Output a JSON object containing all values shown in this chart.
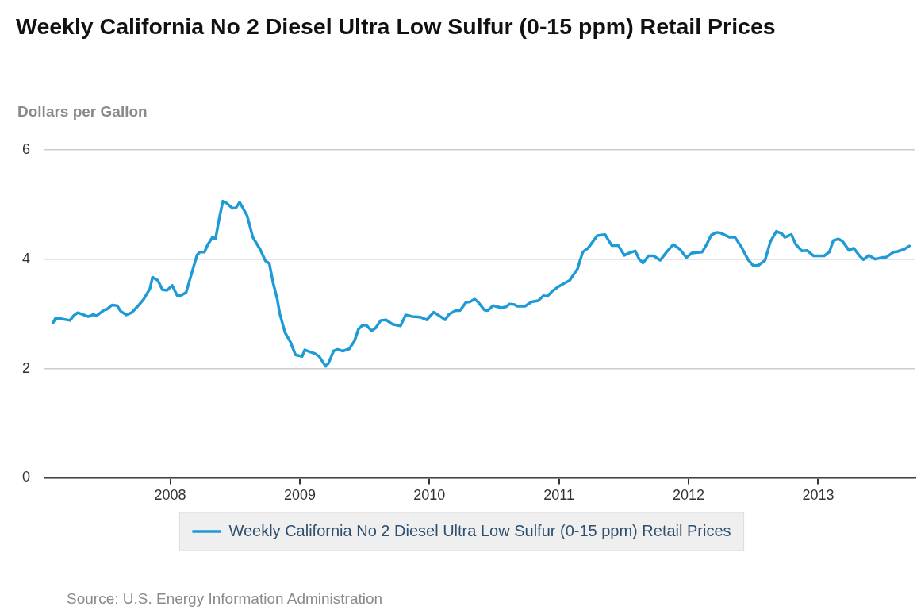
{
  "chart_data": {
    "type": "line",
    "title": "Weekly California No 2 Diesel Ultra Low Sulfur (0-15 ppm) Retail Prices",
    "ylabel": "Dollars per Gallon",
    "annotations": [
      "Source: U.S. Energy Information Administration"
    ],
    "x": [
      2007.095,
      2007.116,
      2007.156,
      2007.227,
      2007.257,
      2007.287,
      2007.369,
      2007.409,
      2007.429,
      2007.49,
      2007.51,
      2007.551,
      2007.591,
      2007.617,
      2007.662,
      2007.702,
      2007.743,
      2007.794,
      2007.844,
      2007.864,
      2007.905,
      2007.941,
      2007.976,
      2008.016,
      2008.053,
      2008.077,
      2008.123,
      2008.168,
      2008.208,
      2008.229,
      2008.265,
      2008.289,
      2008.326,
      2008.35,
      2008.38,
      2008.407,
      2008.427,
      2008.482,
      2008.508,
      2008.536,
      2008.593,
      2008.638,
      2008.694,
      2008.735,
      2008.765,
      2008.795,
      2008.826,
      2008.846,
      2008.886,
      2008.927,
      2008.967,
      2009.018,
      2009.038,
      2009.119,
      2009.15,
      2009.2,
      2009.22,
      2009.261,
      2009.291,
      2009.332,
      2009.382,
      2009.423,
      2009.453,
      2009.483,
      2009.514,
      2009.554,
      2009.585,
      2009.625,
      2009.666,
      2009.716,
      2009.777,
      2009.817,
      2009.868,
      2009.929,
      2009.979,
      2010.034,
      2010.08,
      2010.121,
      2010.151,
      2010.202,
      2010.236,
      2010.283,
      2010.313,
      2010.349,
      2010.374,
      2010.424,
      2010.451,
      2010.491,
      2010.556,
      2010.593,
      2010.617,
      2010.657,
      2010.678,
      2010.738,
      2010.789,
      2010.84,
      2010.88,
      2010.91,
      2010.951,
      2010.991,
      2011.042,
      2011.082,
      2011.113,
      2011.143,
      2011.163,
      2011.184,
      2011.224,
      2011.261,
      2011.295,
      2011.356,
      2011.376,
      2011.407,
      2011.457,
      2011.504,
      2011.538,
      2011.588,
      2011.619,
      2011.649,
      2011.69,
      2011.73,
      2011.781,
      2011.831,
      2011.882,
      2011.933,
      2011.983,
      2012.024,
      2012.105,
      2012.135,
      2012.175,
      2012.216,
      2012.246,
      2012.317,
      2012.358,
      2012.408,
      2012.459,
      2012.499,
      2012.54,
      2012.59,
      2012.631,
      2012.677,
      2012.718,
      2012.742,
      2012.793,
      2012.827,
      2012.874,
      2012.914,
      2012.965,
      2013.046,
      2013.086,
      2013.116,
      2013.157,
      2013.187,
      2013.238,
      2013.274,
      2013.319,
      2013.349,
      2013.39,
      2013.44,
      2013.491,
      2013.521,
      2013.582,
      2013.612,
      2013.663,
      2013.703
    ],
    "series": [
      {
        "name": "Weekly California No 2 Diesel Ultra Low Sulfur (0-15 ppm) Retail Prices",
        "color": "#1e9ad6",
        "values": [
          2.83,
          2.92,
          2.91,
          2.88,
          2.97,
          3.02,
          2.95,
          2.99,
          2.96,
          3.07,
          3.08,
          3.16,
          3.15,
          3.05,
          2.98,
          3.02,
          3.12,
          3.26,
          3.46,
          3.67,
          3.61,
          3.44,
          3.43,
          3.52,
          3.34,
          3.33,
          3.39,
          3.76,
          4.08,
          4.13,
          4.13,
          4.26,
          4.4,
          4.37,
          4.76,
          5.06,
          5.04,
          4.93,
          4.94,
          5.04,
          4.8,
          4.4,
          4.18,
          3.97,
          3.92,
          3.56,
          3.27,
          3.0,
          2.66,
          2.49,
          2.25,
          2.22,
          2.34,
          2.27,
          2.22,
          2.04,
          2.09,
          2.32,
          2.35,
          2.32,
          2.36,
          2.51,
          2.72,
          2.79,
          2.79,
          2.69,
          2.74,
          2.88,
          2.89,
          2.81,
          2.78,
          2.98,
          2.95,
          2.94,
          2.89,
          3.03,
          2.96,
          2.89,
          2.99,
          3.06,
          3.06,
          3.21,
          3.22,
          3.27,
          3.22,
          3.07,
          3.06,
          3.15,
          3.11,
          3.13,
          3.18,
          3.17,
          3.14,
          3.14,
          3.22,
          3.24,
          3.33,
          3.32,
          3.42,
          3.49,
          3.56,
          3.61,
          3.72,
          3.82,
          3.98,
          4.13,
          4.2,
          4.32,
          4.43,
          4.45,
          4.37,
          4.25,
          4.25,
          4.07,
          4.11,
          4.15,
          4.0,
          3.93,
          4.06,
          4.06,
          3.98,
          4.13,
          4.27,
          4.18,
          4.03,
          4.11,
          4.13,
          4.25,
          4.44,
          4.49,
          4.48,
          4.4,
          4.4,
          4.22,
          3.99,
          3.88,
          3.89,
          3.98,
          4.32,
          4.51,
          4.47,
          4.4,
          4.45,
          4.27,
          4.15,
          4.16,
          4.06,
          4.06,
          4.13,
          4.34,
          4.37,
          4.33,
          4.16,
          4.2,
          4.06,
          3.99,
          4.07,
          4.0,
          4.03,
          4.03,
          4.13,
          4.14,
          4.18,
          4.24
        ]
      }
    ],
    "xlim": [
      2007.03,
      2013.75
    ],
    "xticks": [
      2008,
      2009,
      2010,
      2011,
      2012,
      2013
    ],
    "ylim": [
      0,
      6
    ],
    "yticks": [
      0,
      2,
      4,
      6
    ],
    "grid": "y",
    "legend": "bottom",
    "marker": "none",
    "line_style": "solid"
  }
}
